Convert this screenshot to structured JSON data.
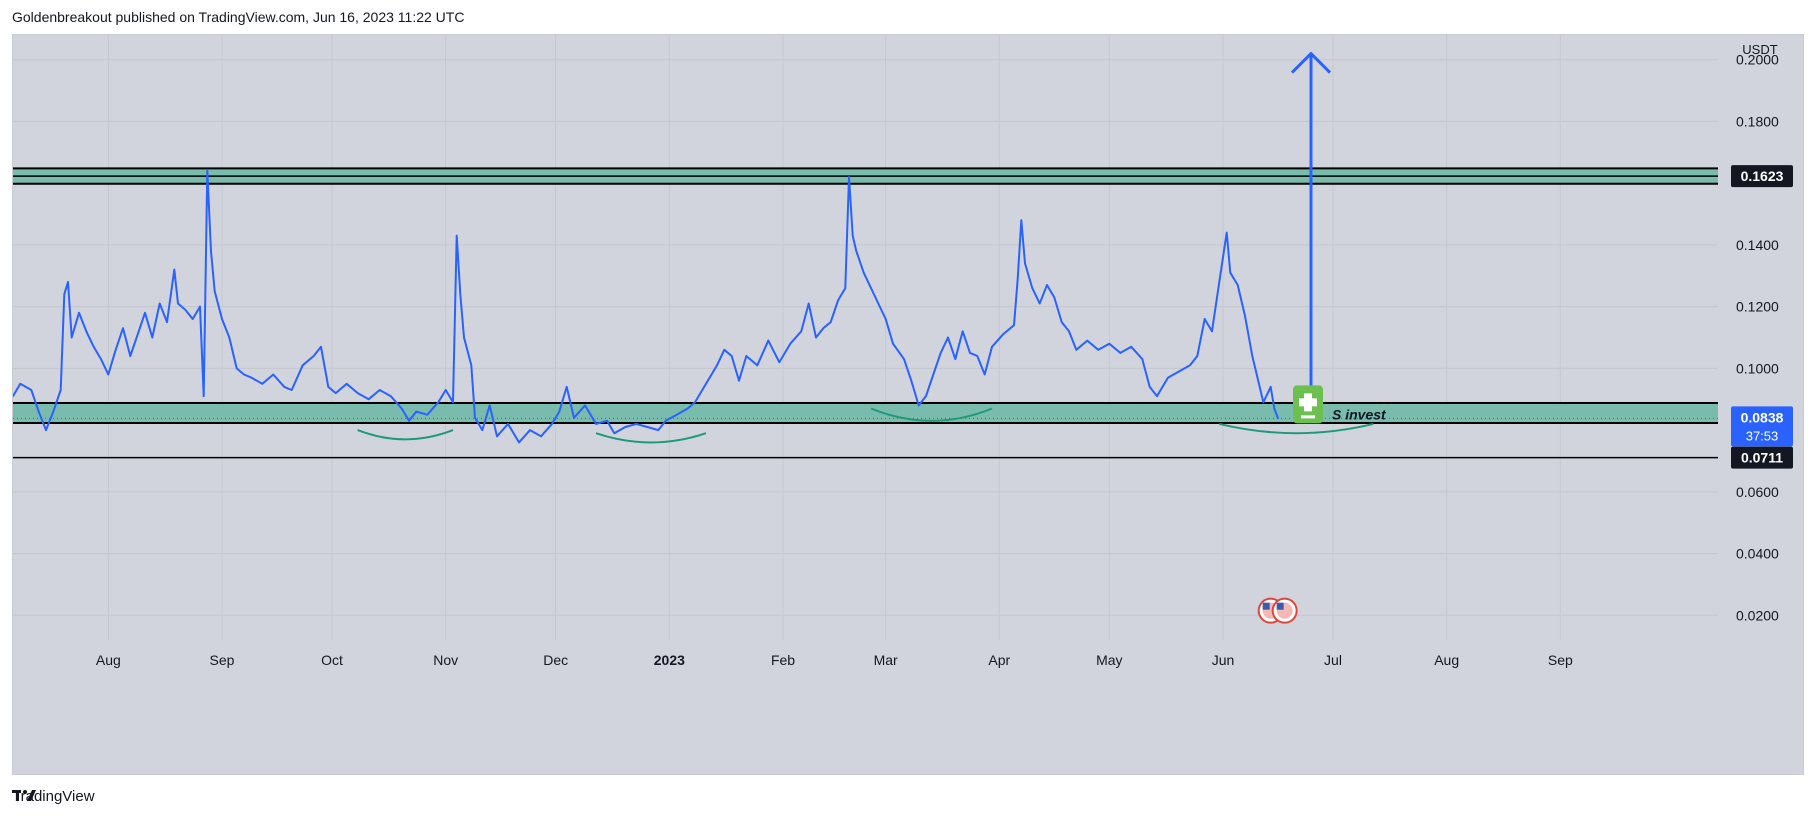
{
  "header": {
    "attribution": "Goldenbreakout published on TradingView.com, Jun 16, 2023 11:22 UTC"
  },
  "footer": {
    "brand": "TradingView"
  },
  "colors": {
    "background": "#d1d4dc",
    "price_line": "#2962ff",
    "zone_fill": "#6fb9a9",
    "zone_border": "#000000",
    "arc": "#1e9a78",
    "current_badge": "#2962ff",
    "level_badge": "#131722"
  },
  "chart_data": {
    "type": "line",
    "quote_currency": "USDT",
    "y_ticks": [
      "0.2000",
      "0.1800",
      "0.1400",
      "0.1200",
      "0.1000",
      "0.0600",
      "0.0400",
      "0.0200"
    ],
    "x_ticks": [
      "Aug",
      "Sep",
      "Oct",
      "Nov",
      "Dec",
      "2023",
      "Feb",
      "Mar",
      "Apr",
      "May",
      "Jun",
      "Jul",
      "Aug",
      "Sep"
    ],
    "x_tick_dates": [
      "2022-08-01",
      "2022-09-01",
      "2022-10-01",
      "2022-11-01",
      "2022-12-01",
      "2023-01-01",
      "2023-02-01",
      "2023-03-01",
      "2023-04-01",
      "2023-05-01",
      "2023-06-01",
      "2023-07-01",
      "2023-08-01",
      "2023-09-01"
    ],
    "xlim": [
      "2022-07-06",
      "2023-10-14"
    ],
    "ylim": [
      0.012,
      0.208
    ],
    "grid": true,
    "series": [
      {
        "points": [
          [
            "2022-07-06",
            0.091
          ],
          [
            "2022-07-08",
            0.095
          ],
          [
            "2022-07-11",
            0.093
          ],
          [
            "2022-07-13",
            0.086
          ],
          [
            "2022-07-15",
            0.08
          ],
          [
            "2022-07-17",
            0.086
          ],
          [
            "2022-07-19",
            0.093
          ],
          [
            "2022-07-20",
            0.124
          ],
          [
            "2022-07-21",
            0.128
          ],
          [
            "2022-07-22",
            0.11
          ],
          [
            "2022-07-24",
            0.118
          ],
          [
            "2022-07-26",
            0.112
          ],
          [
            "2022-07-28",
            0.107
          ],
          [
            "2022-07-30",
            0.103
          ],
          [
            "2022-08-01",
            0.098
          ],
          [
            "2022-08-03",
            0.106
          ],
          [
            "2022-08-05",
            0.113
          ],
          [
            "2022-08-07",
            0.104
          ],
          [
            "2022-08-09",
            0.111
          ],
          [
            "2022-08-11",
            0.118
          ],
          [
            "2022-08-13",
            0.11
          ],
          [
            "2022-08-15",
            0.121
          ],
          [
            "2022-08-17",
            0.115
          ],
          [
            "2022-08-19",
            0.132
          ],
          [
            "2022-08-20",
            0.121
          ],
          [
            "2022-08-22",
            0.119
          ],
          [
            "2022-08-24",
            0.116
          ],
          [
            "2022-08-26",
            0.12
          ],
          [
            "2022-08-27",
            0.091
          ],
          [
            "2022-08-28",
            0.164
          ],
          [
            "2022-08-29",
            0.138
          ],
          [
            "2022-08-30",
            0.125
          ],
          [
            "2022-09-01",
            0.116
          ],
          [
            "2022-09-03",
            0.11
          ],
          [
            "2022-09-05",
            0.1
          ],
          [
            "2022-09-07",
            0.098
          ],
          [
            "2022-09-09",
            0.097
          ],
          [
            "2022-09-12",
            0.095
          ],
          [
            "2022-09-15",
            0.098
          ],
          [
            "2022-09-18",
            0.094
          ],
          [
            "2022-09-20",
            0.093
          ],
          [
            "2022-09-23",
            0.101
          ],
          [
            "2022-09-26",
            0.104
          ],
          [
            "2022-09-28",
            0.107
          ],
          [
            "2022-09-30",
            0.094
          ],
          [
            "2022-10-02",
            0.092
          ],
          [
            "2022-10-05",
            0.095
          ],
          [
            "2022-10-08",
            0.092
          ],
          [
            "2022-10-11",
            0.09
          ],
          [
            "2022-10-14",
            0.093
          ],
          [
            "2022-10-17",
            0.091
          ],
          [
            "2022-10-20",
            0.087
          ],
          [
            "2022-10-22",
            0.083
          ],
          [
            "2022-10-24",
            0.086
          ],
          [
            "2022-10-27",
            0.085
          ],
          [
            "2022-10-30",
            0.089
          ],
          [
            "2022-11-01",
            0.093
          ],
          [
            "2022-11-03",
            0.089
          ],
          [
            "2022-11-04",
            0.143
          ],
          [
            "2022-11-05",
            0.124
          ],
          [
            "2022-11-06",
            0.11
          ],
          [
            "2022-11-08",
            0.101
          ],
          [
            "2022-11-09",
            0.084
          ],
          [
            "2022-11-11",
            0.08
          ],
          [
            "2022-11-13",
            0.088
          ],
          [
            "2022-11-15",
            0.078
          ],
          [
            "2022-11-18",
            0.082
          ],
          [
            "2022-11-21",
            0.076
          ],
          [
            "2022-11-24",
            0.08
          ],
          [
            "2022-11-27",
            0.078
          ],
          [
            "2022-11-30",
            0.082
          ],
          [
            "2022-12-02",
            0.086
          ],
          [
            "2022-12-04",
            0.094
          ],
          [
            "2022-12-06",
            0.084
          ],
          [
            "2022-12-09",
            0.088
          ],
          [
            "2022-12-12",
            0.082
          ],
          [
            "2022-12-15",
            0.083
          ],
          [
            "2022-12-17",
            0.079
          ],
          [
            "2022-12-20",
            0.081
          ],
          [
            "2022-12-23",
            0.082
          ],
          [
            "2022-12-26",
            0.081
          ],
          [
            "2022-12-29",
            0.08
          ],
          [
            "2022-12-31",
            0.083
          ],
          [
            "2023-01-03",
            0.085
          ],
          [
            "2023-01-06",
            0.087
          ],
          [
            "2023-01-08",
            0.089
          ],
          [
            "2023-01-10",
            0.093
          ],
          [
            "2023-01-12",
            0.097
          ],
          [
            "2023-01-14",
            0.101
          ],
          [
            "2023-01-16",
            0.106
          ],
          [
            "2023-01-18",
            0.104
          ],
          [
            "2023-01-20",
            0.096
          ],
          [
            "2023-01-22",
            0.104
          ],
          [
            "2023-01-25",
            0.101
          ],
          [
            "2023-01-28",
            0.109
          ],
          [
            "2023-01-31",
            0.102
          ],
          [
            "2023-02-03",
            0.108
          ],
          [
            "2023-02-06",
            0.112
          ],
          [
            "2023-02-08",
            0.121
          ],
          [
            "2023-02-10",
            0.11
          ],
          [
            "2023-02-12",
            0.113
          ],
          [
            "2023-02-14",
            0.115
          ],
          [
            "2023-02-16",
            0.122
          ],
          [
            "2023-02-18",
            0.126
          ],
          [
            "2023-02-19",
            0.162
          ],
          [
            "2023-02-20",
            0.143
          ],
          [
            "2023-02-21",
            0.138
          ],
          [
            "2023-02-23",
            0.131
          ],
          [
            "2023-02-25",
            0.126
          ],
          [
            "2023-02-27",
            0.121
          ],
          [
            "2023-03-01",
            0.116
          ],
          [
            "2023-03-03",
            0.108
          ],
          [
            "2023-03-06",
            0.103
          ],
          [
            "2023-03-08",
            0.096
          ],
          [
            "2023-03-10",
            0.088
          ],
          [
            "2023-03-12",
            0.091
          ],
          [
            "2023-03-14",
            0.098
          ],
          [
            "2023-03-16",
            0.105
          ],
          [
            "2023-03-18",
            0.11
          ],
          [
            "2023-03-20",
            0.103
          ],
          [
            "2023-03-22",
            0.112
          ],
          [
            "2023-03-24",
            0.105
          ],
          [
            "2023-03-26",
            0.104
          ],
          [
            "2023-03-28",
            0.098
          ],
          [
            "2023-03-30",
            0.107
          ],
          [
            "2023-04-02",
            0.111
          ],
          [
            "2023-04-05",
            0.114
          ],
          [
            "2023-04-06",
            0.129
          ],
          [
            "2023-04-07",
            0.148
          ],
          [
            "2023-04-08",
            0.134
          ],
          [
            "2023-04-10",
            0.126
          ],
          [
            "2023-04-12",
            0.121
          ],
          [
            "2023-04-14",
            0.127
          ],
          [
            "2023-04-16",
            0.123
          ],
          [
            "2023-04-18",
            0.115
          ],
          [
            "2023-04-20",
            0.112
          ],
          [
            "2023-04-22",
            0.106
          ],
          [
            "2023-04-25",
            0.109
          ],
          [
            "2023-04-28",
            0.106
          ],
          [
            "2023-05-01",
            0.108
          ],
          [
            "2023-05-04",
            0.105
          ],
          [
            "2023-05-07",
            0.107
          ],
          [
            "2023-05-10",
            0.103
          ],
          [
            "2023-05-12",
            0.094
          ],
          [
            "2023-05-14",
            0.091
          ],
          [
            "2023-05-17",
            0.097
          ],
          [
            "2023-05-20",
            0.099
          ],
          [
            "2023-05-23",
            0.101
          ],
          [
            "2023-05-25",
            0.104
          ],
          [
            "2023-05-27",
            0.116
          ],
          [
            "2023-05-29",
            0.112
          ],
          [
            "2023-05-31",
            0.128
          ],
          [
            "2023-06-02",
            0.144
          ],
          [
            "2023-06-03",
            0.131
          ],
          [
            "2023-06-05",
            0.127
          ],
          [
            "2023-06-07",
            0.117
          ],
          [
            "2023-06-09",
            0.104
          ],
          [
            "2023-06-11",
            0.094
          ],
          [
            "2023-06-12",
            0.089
          ],
          [
            "2023-06-14",
            0.094
          ],
          [
            "2023-06-15",
            0.087
          ],
          [
            "2023-06-16",
            0.0838
          ]
        ]
      }
    ],
    "zones": [
      {
        "top": 0.1648,
        "bottom": 0.1598
      },
      {
        "top": 0.0888,
        "bottom": 0.0823
      }
    ],
    "levels": [
      {
        "value": 0.1623,
        "label": "0.1623"
      },
      {
        "value": 0.0711,
        "label": "0.0711"
      }
    ],
    "current_price": {
      "label": "0.0838",
      "countdown": "37:53",
      "value": 0.0838
    },
    "projection": {
      "from": [
        "2023-06-25",
        0.0868
      ],
      "to": [
        "2023-06-25",
        0.202
      ]
    },
    "arcs": [
      {
        "x0": "2022-10-08",
        "x1": "2022-11-03",
        "y_end": 0.08,
        "y_mid": 0.077
      },
      {
        "x0": "2022-12-12",
        "x1": "2023-01-11",
        "y_end": 0.079,
        "y_mid": 0.076
      },
      {
        "x0": "2023-02-25",
        "x1": "2023-03-30",
        "y_end": 0.087,
        "y_mid": 0.083
      },
      {
        "x0": "2023-05-31",
        "x1": "2023-07-12",
        "y_end": 0.082,
        "y_mid": 0.079
      }
    ],
    "annotation": {
      "text": "S invest",
      "x": "2023-07-04",
      "y": 0.0838
    },
    "event_markers": {
      "x": "2023-06-14",
      "y": 0.0215
    }
  }
}
